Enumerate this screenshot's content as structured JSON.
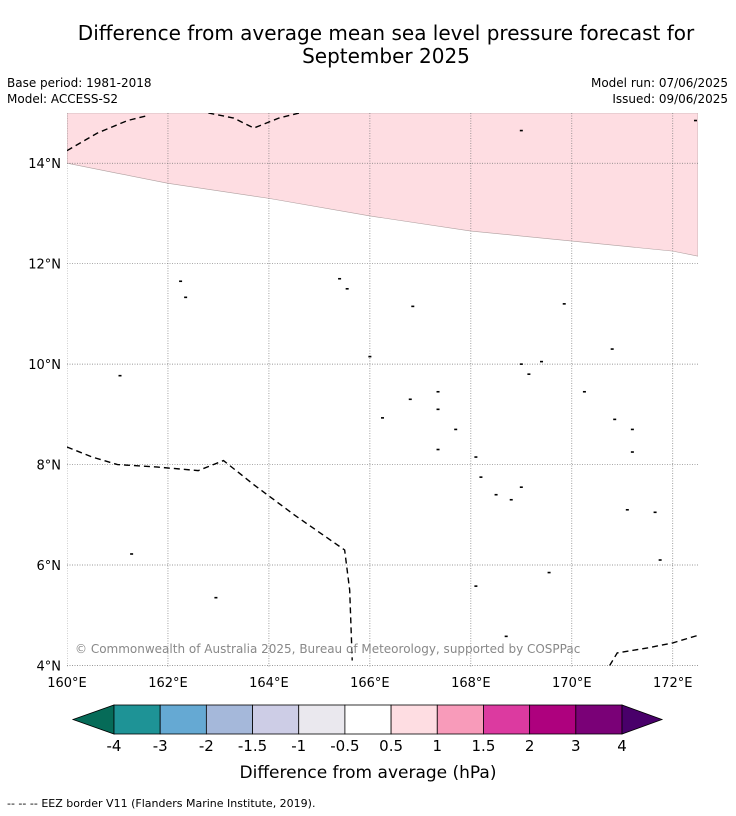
{
  "title_line1": "Difference from average mean sea level pressure forecast for",
  "title_line2": "September 2025",
  "base_period": "Base period: 1981-2018",
  "model": "Model: ACCESS-S2",
  "model_run": "Model run: 07/06/2025",
  "issued": "Issued: 09/06/2025",
  "copyright": "© Commonwealth of Australia 2025, Bureau of Meteorology, supported by COSPPac",
  "lat_labels": [
    "14°N",
    "12°N",
    "10°N",
    "8°N",
    "6°N",
    "4°N"
  ],
  "lon_labels": [
    "160°E",
    "162°E",
    "164°E",
    "166°E",
    "168°E",
    "170°E",
    "172°E"
  ],
  "colorbar": {
    "title": "Difference from average (hPa)",
    "labels": [
      "-4",
      "-3",
      "-2",
      "-1.5",
      "-1",
      "-0.5",
      "0.5",
      "1",
      "1.5",
      "2",
      "3",
      "4"
    ],
    "colors": [
      "#066b58",
      "#1e9396",
      "#65a9d3",
      "#a5b8da",
      "#cdcde6",
      "#eae8ee",
      "#ffffff",
      "#fedde2",
      "#f89bba",
      "#dc3aa0",
      "#ae017e",
      "#7a0177",
      "#49006a"
    ]
  },
  "legend": {
    "eez_symbol": "--  --  --",
    "eez_text": "EEZ border V11 (Flanders Marine Institute, 2019)."
  },
  "map_data": {
    "lon_range": [
      160,
      172.5
    ],
    "lat_range": [
      3.95,
      15
    ],
    "lat_ticks": [
      14,
      12,
      10,
      8,
      6,
      4
    ],
    "lon_ticks": [
      160,
      162,
      164,
      166,
      168,
      170,
      172
    ],
    "anomaly_region": {
      "value_bin": "0.5 to 1",
      "boundary": [
        [
          160,
          14
        ],
        [
          161,
          13.8
        ],
        [
          162,
          13.6
        ],
        [
          164,
          13.3
        ],
        [
          166,
          12.95
        ],
        [
          168,
          12.65
        ],
        [
          169,
          12.55
        ],
        [
          170,
          12.45
        ],
        [
          171,
          12.35
        ],
        [
          172,
          12.25
        ],
        [
          172.5,
          12.15
        ]
      ]
    },
    "eez_lines": [
      [
        [
          160,
          14.25
        ],
        [
          160.6,
          14.6
        ],
        [
          161.2,
          14.85
        ],
        [
          161.6,
          14.95
        ]
      ],
      [
        [
          162.8,
          15
        ],
        [
          163.3,
          14.9
        ],
        [
          163.7,
          14.7
        ],
        [
          164.2,
          14.9
        ],
        [
          164.6,
          15
        ]
      ],
      [
        [
          160,
          8.35
        ],
        [
          160.5,
          8.15
        ],
        [
          161,
          8
        ],
        [
          161.8,
          7.95
        ],
        [
          162.6,
          7.88
        ],
        [
          163.1,
          8.08
        ],
        [
          163.7,
          7.6
        ],
        [
          164.5,
          7
        ],
        [
          165.5,
          6.3
        ],
        [
          165.6,
          5.5
        ],
        [
          165.65,
          4.1
        ]
      ],
      [
        [
          170.75,
          4
        ],
        [
          170.9,
          4.25
        ],
        [
          171.5,
          4.35
        ],
        [
          172,
          4.45
        ],
        [
          172.5,
          4.6
        ]
      ]
    ],
    "islands": [
      [
        161.05,
        9.77
      ],
      [
        161.28,
        6.22
      ],
      [
        162.25,
        11.65
      ],
      [
        162.35,
        11.33
      ],
      [
        162.95,
        5.35
      ],
      [
        165.4,
        11.7
      ],
      [
        165.55,
        11.5
      ],
      [
        166,
        10.15
      ],
      [
        166.25,
        8.93
      ],
      [
        166.85,
        11.15
      ],
      [
        166.8,
        9.3
      ],
      [
        167.35,
        9.45
      ],
      [
        167.35,
        9.1
      ],
      [
        167.7,
        8.7
      ],
      [
        167.35,
        8.3
      ],
      [
        168.1,
        8.15
      ],
      [
        168.2,
        7.75
      ],
      [
        168.5,
        7.4
      ],
      [
        168.8,
        7.3
      ],
      [
        169.0,
        7.55
      ],
      [
        168.1,
        5.58
      ],
      [
        168.7,
        4.58
      ],
      [
        169,
        10
      ],
      [
        169.15,
        9.8
      ],
      [
        169.4,
        10.05
      ],
      [
        169.85,
        11.2
      ],
      [
        169.55,
        5.85
      ],
      [
        170.25,
        9.45
      ],
      [
        170.8,
        10.3
      ],
      [
        170.85,
        8.9
      ],
      [
        171.2,
        8.7
      ],
      [
        171.2,
        8.25
      ],
      [
        171.1,
        7.1
      ],
      [
        171.65,
        7.05
      ],
      [
        171.75,
        6.1
      ],
      [
        169,
        14.65
      ],
      [
        172.45,
        14.85
      ]
    ]
  }
}
